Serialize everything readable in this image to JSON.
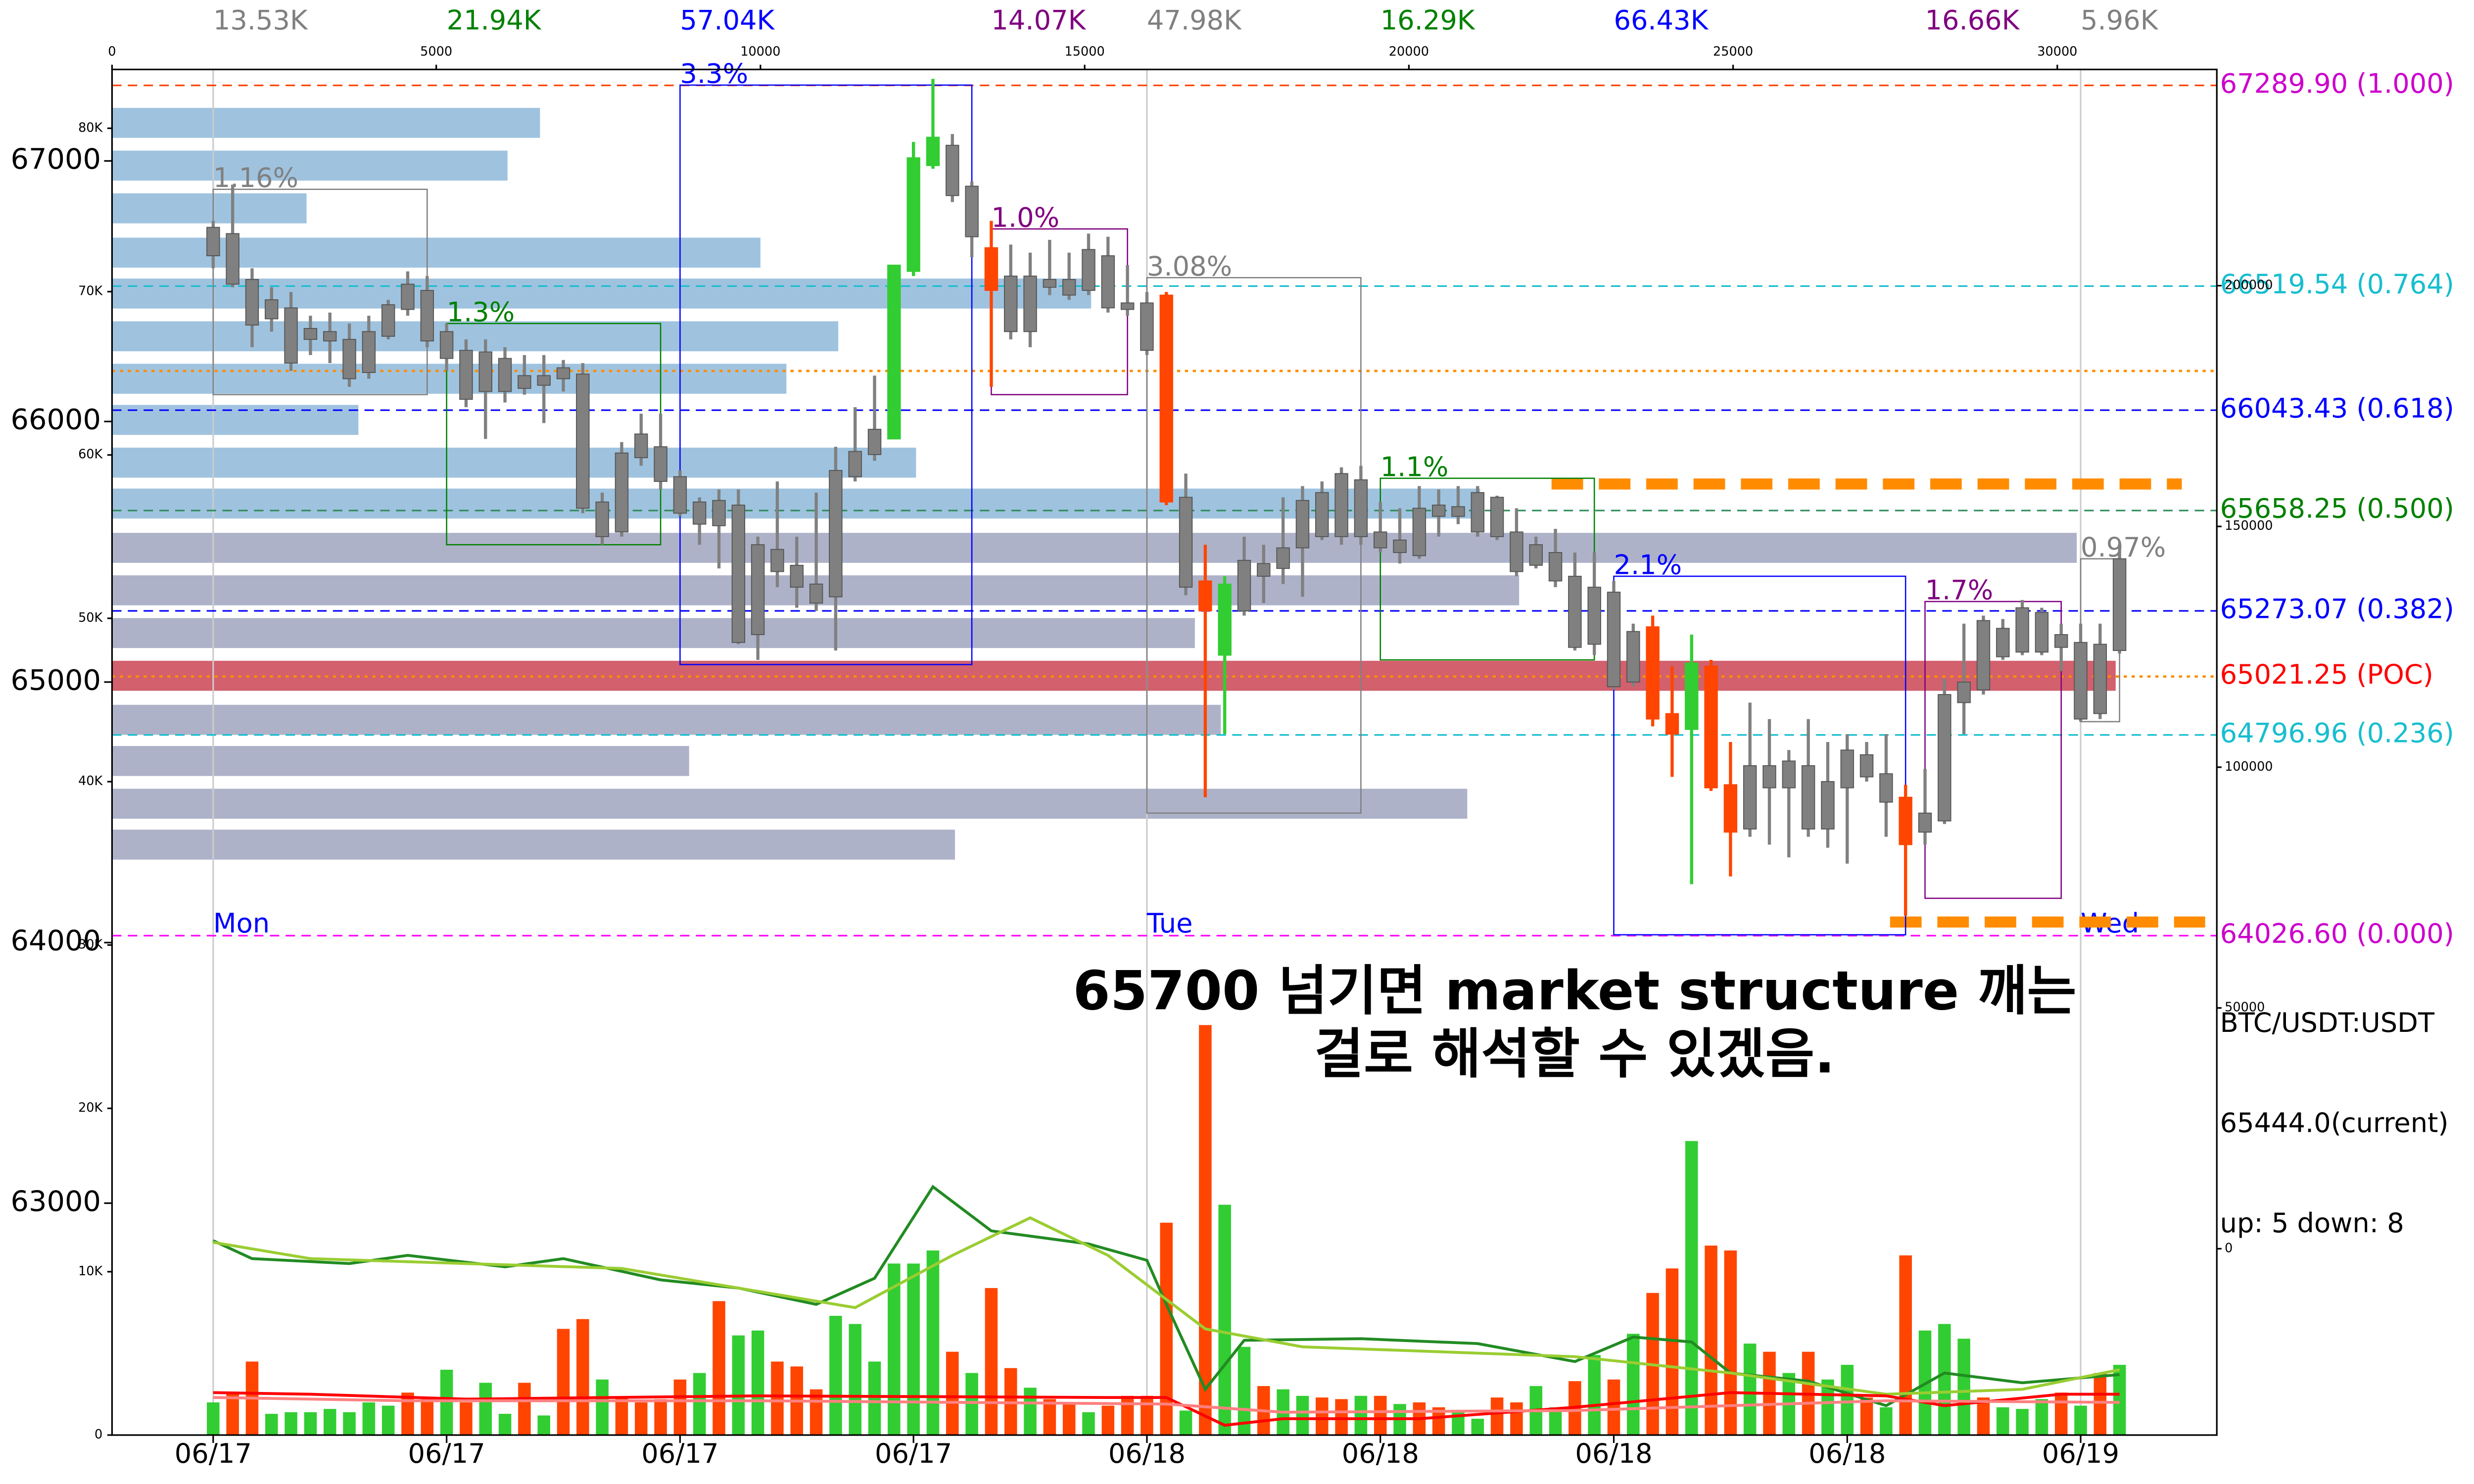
{
  "chart_data": {
    "type": "candlestick",
    "xlim": [
      -5.2,
      103
    ],
    "xticks": [
      {
        "value": 0,
        "label": "06/17"
      },
      {
        "value": 12,
        "label": "06/17"
      },
      {
        "value": 24,
        "label": "06/17"
      },
      {
        "value": 36,
        "label": "06/17"
      },
      {
        "value": 48,
        "label": "06/18"
      },
      {
        "value": 60,
        "label": "06/18"
      },
      {
        "value": 72,
        "label": "06/18"
      },
      {
        "value": 84,
        "label": "06/18"
      },
      {
        "value": 96,
        "label": "06/19"
      }
    ],
    "ylim": [
      62110,
      67351
    ],
    "yticks": [
      63000,
      64000,
      65000,
      66000,
      67000
    ],
    "open": [
      66636,
      66721,
      66545,
      66394,
      66436,
      66315,
      66345,
      66315,
      66188,
      66327,
      66430,
      66503,
      66345,
      66273,
      66115,
      66242,
      66127,
      66176,
      66164,
      66182,
      65691,
      65576,
      65861,
      65903,
      65788,
      65691,
      65600,
      65679,
      65182,
      65509,
      65448,
      65376,
      65327,
      65788,
      65873,
      65933,
      66576,
      66982,
      67060,
      66903,
      66667,
      66558,
      66345,
      66545,
      66545,
      66503,
      66636,
      66455,
      66455,
      66485,
      65709,
      65388,
      65103,
      65273,
      65406,
      65436,
      65515,
      65558,
      65558,
      65776,
      65576,
      65545,
      65485,
      65636,
      65673,
      65576,
      65709,
      65576,
      65448,
      65497,
      65406,
      65145,
      65345,
      65000,
      65212,
      64879,
      64818,
      65061,
      64606,
      64436,
      64679,
      64594,
      64679,
      64436,
      64594,
      64721,
      64648,
      64558,
      64424,
      64467,
      64921,
      64970,
      65097,
      65115,
      65267,
      65133,
      65152,
      64879,
      65121
    ],
    "high": [
      66770,
      66909,
      66588,
      66515,
      66497,
      66406,
      66418,
      66376,
      66406,
      66467,
      66576,
      66558,
      66376,
      66315,
      66315,
      66285,
      66255,
      66255,
      66236,
      66224,
      65727,
      65921,
      66030,
      66030,
      65812,
      65709,
      65739,
      65739,
      65558,
      65770,
      65558,
      65727,
      65903,
      66055,
      66176,
      66600,
      67073,
      67315,
      67103,
      66921,
      66770,
      66679,
      66648,
      66697,
      66648,
      66721,
      66709,
      66600,
      66497,
      66497,
      65800,
      65527,
      65406,
      65558,
      65527,
      65709,
      65752,
      65770,
      65824,
      65830,
      65691,
      65667,
      65752,
      65739,
      65752,
      65752,
      65715,
      65667,
      65558,
      65588,
      65497,
      65497,
      65388,
      65224,
      65255,
      65061,
      65182,
      65085,
      64770,
      64921,
      64858,
      64739,
      64858,
      64770,
      64800,
      64770,
      64800,
      64606,
      64667,
      65012,
      65224,
      65255,
      65242,
      65315,
      65285,
      65224,
      65224,
      65224,
      65527
    ],
    "low": [
      66588,
      66515,
      66285,
      66345,
      66194,
      66255,
      66224,
      66133,
      66164,
      66315,
      66406,
      66285,
      66194,
      66055,
      65933,
      66073,
      66103,
      65994,
      66115,
      65648,
      65527,
      65558,
      65830,
      65739,
      65636,
      65527,
      65436,
      65145,
      65085,
      65364,
      65285,
      65273,
      65121,
      65770,
      65849,
      65933,
      66558,
      66970,
      66842,
      66630,
      66133,
      66315,
      66285,
      66485,
      66467,
      66485,
      66418,
      66406,
      66255,
      65679,
      65333,
      64558,
      64800,
      65255,
      65303,
      65376,
      65327,
      65545,
      65527,
      65527,
      65497,
      65455,
      65473,
      65558,
      65606,
      65558,
      65545,
      65406,
      65436,
      65364,
      65121,
      65103,
      64970,
      64982,
      64830,
      64636,
      64224,
      64582,
      64254,
      64406,
      64376,
      64327,
      64406,
      64364,
      64303,
      64618,
      64406,
      64103,
      64376,
      64455,
      64800,
      64952,
      65085,
      65103,
      65103,
      65042,
      64848,
      64858,
      65109
    ],
    "close": [
      66745,
      66527,
      66370,
      66467,
      66224,
      66357,
      66309,
      66164,
      66345,
      66448,
      66527,
      66309,
      66242,
      66085,
      66267,
      66115,
      66176,
      66139,
      66206,
      65667,
      65558,
      65879,
      65952,
      65770,
      65648,
      65606,
      65697,
      65152,
      65527,
      65424,
      65364,
      65303,
      65812,
      65885,
      65970,
      66600,
      67012,
      67091,
      66867,
      66709,
      66503,
      66345,
      66558,
      66515,
      66485,
      66660,
      66436,
      66430,
      66273,
      65691,
      65364,
      65273,
      65376,
      65467,
      65455,
      65515,
      65697,
      65727,
      65800,
      65558,
      65515,
      65497,
      65667,
      65679,
      65636,
      65727,
      65558,
      65424,
      65527,
      65388,
      65133,
      65364,
      64982,
      65194,
      64858,
      64800,
      65073,
      64594,
      64424,
      64679,
      64594,
      64697,
      64436,
      64618,
      64739,
      64636,
      64539,
      64376,
      64497,
      64952,
      65000,
      65236,
      65206,
      65285,
      65115,
      65182,
      64858,
      65145,
      65473
    ],
    "colors": [
      "gray",
      "gray",
      "gray",
      "gray",
      "gray",
      "gray",
      "gray",
      "gray",
      "gray",
      "gray",
      "gray",
      "gray",
      "gray",
      "gray",
      "gray",
      "gray",
      "gray",
      "gray",
      "gray",
      "gray",
      "gray",
      "gray",
      "gray",
      "gray",
      "gray",
      "gray",
      "gray",
      "gray",
      "gray",
      "gray",
      "gray",
      "gray",
      "gray",
      "gray",
      "gray",
      "limegreen",
      "limegreen",
      "limegreen",
      "gray",
      "gray",
      "orangered",
      "gray",
      "gray",
      "gray",
      "gray",
      "gray",
      "gray",
      "gray",
      "gray",
      "orangered",
      "gray",
      "orangered",
      "limegreen",
      "gray",
      "gray",
      "gray",
      "gray",
      "gray",
      "gray",
      "gray",
      "gray",
      "gray",
      "gray",
      "gray",
      "gray",
      "gray",
      "gray",
      "gray",
      "gray",
      "gray",
      "gray",
      "gray",
      "gray",
      "gray",
      "orangered",
      "orangered",
      "limegreen",
      "orangered",
      "orangered",
      "gray",
      "gray",
      "gray",
      "gray",
      "gray",
      "gray",
      "gray",
      "gray",
      "orangered",
      "gray",
      "gray",
      "gray",
      "gray",
      "gray",
      "gray",
      "gray",
      "gray",
      "gray",
      "gray",
      "gray"
    ],
    "volume": {
      "ylim": [
        0,
        83600
      ],
      "yticks": [
        0,
        {
          "value": 10000,
          "label": "10K"
        },
        {
          "value": 20000,
          "label": "20K"
        },
        {
          "value": 30000,
          "label": "30K"
        },
        {
          "value": 40000,
          "label": "40K"
        },
        {
          "value": 50000,
          "label": "50K"
        },
        {
          "value": 60000,
          "label": "60K"
        },
        {
          "value": 70000,
          "label": "70K"
        },
        {
          "value": 80000,
          "label": "80K"
        }
      ],
      "values": [
        2000,
        2600,
        4500,
        1300,
        1400,
        1400,
        1600,
        1400,
        2000,
        1800,
        2600,
        2200,
        4000,
        2000,
        3200,
        1300,
        3200,
        1200,
        6500,
        7100,
        3400,
        2300,
        2000,
        2200,
        3400,
        3800,
        8200,
        6100,
        6400,
        4500,
        4200,
        2800,
        7300,
        6800,
        4500,
        10500,
        10500,
        11300,
        5100,
        3800,
        9000,
        4100,
        2900,
        2200,
        2000,
        1400,
        1800,
        2400,
        2400,
        13000,
        1500,
        25100,
        14100,
        5400,
        3000,
        2800,
        2400,
        2300,
        2200,
        2400,
        2400,
        1900,
        2000,
        1700,
        1400,
        1000,
        2300,
        2000,
        3000,
        1700,
        3300,
        4900,
        3400,
        6200,
        8700,
        10200,
        18000,
        11600,
        11300,
        5600,
        5100,
        3800,
        5100,
        3400,
        4300,
        2300,
        1700,
        11000,
        6400,
        6800,
        5900,
        2300,
        1700,
        1600,
        2200,
        2600,
        1800,
        3800,
        4300
      ],
      "colors": [
        "limegreen",
        "orangered",
        "orangered",
        "limegreen",
        "limegreen",
        "limegreen",
        "limegreen",
        "limegreen",
        "limegreen",
        "limegreen",
        "orangered",
        "orangered",
        "limegreen",
        "orangered",
        "limegreen",
        "limegreen",
        "orangered",
        "limegreen",
        "orangered",
        "orangered",
        "limegreen",
        "orangered",
        "orangered",
        "orangered",
        "orangered",
        "limegreen",
        "orangered",
        "limegreen",
        "limegreen",
        "orangered",
        "orangered",
        "orangered",
        "limegreen",
        "limegreen",
        "limegreen",
        "limegreen",
        "limegreen",
        "limegreen",
        "orangered",
        "limegreen",
        "orangered",
        "orangered",
        "limegreen",
        "orangered",
        "orangered",
        "limegreen",
        "orangered",
        "orangered",
        "orangered",
        "orangered",
        "limegreen",
        "orangered",
        "limegreen",
        "limegreen",
        "orangered",
        "limegreen",
        "limegreen",
        "orangered",
        "orangered",
        "limegreen",
        "orangered",
        "limegreen",
        "orangered",
        "orangered",
        "limegreen",
        "limegreen",
        "orangered",
        "orangered",
        "limegreen",
        "limegreen",
        "orangered",
        "limegreen",
        "orangered",
        "limegreen",
        "orangered",
        "orangered",
        "limegreen",
        "orangered",
        "orangered",
        "limegreen",
        "orangered",
        "limegreen",
        "orangered",
        "limegreen",
        "limegreen",
        "orangered",
        "limegreen",
        "orangered",
        "limegreen",
        "limegreen",
        "limegreen",
        "orangered",
        "limegreen",
        "limegreen",
        "limegreen",
        "orangered",
        "limegreen",
        "orangered",
        "limegreen"
      ],
      "lines": [
        {
          "color": "#228b22",
          "x": [
            0,
            2,
            7,
            10,
            15,
            18,
            23,
            27,
            31,
            34,
            37,
            40,
            45,
            48,
            49,
            51,
            53,
            59,
            65,
            70,
            73,
            76,
            78,
            82,
            86,
            89,
            93,
            98
          ],
          "values": [
            11900,
            10800,
            10500,
            11000,
            10300,
            10800,
            9500,
            9000,
            8000,
            9600,
            15200,
            12500,
            11700,
            10700,
            8000,
            2800,
            5800,
            5900,
            5600,
            4500,
            6000,
            5700,
            3800,
            3300,
            1800,
            3800,
            3200,
            3700
          ]
        },
        {
          "color": "#9acd32",
          "x": [
            0,
            5,
            13,
            21,
            31,
            33,
            38,
            42,
            46,
            51,
            56,
            70,
            78,
            86,
            93,
            98
          ],
          "values": [
            11800,
            10800,
            10500,
            10200,
            8200,
            7800,
            11000,
            13300,
            11000,
            6500,
            5400,
            4800,
            3800,
            2500,
            2800,
            4000
          ]
        },
        {
          "color": "#ff0000",
          "x": [
            0,
            5,
            13,
            28,
            46,
            49,
            52,
            55,
            62,
            70,
            78,
            86,
            89,
            95,
            98
          ],
          "values": [
            2600,
            2500,
            2200,
            2400,
            2300,
            2300,
            600,
            1000,
            1000,
            1700,
            2600,
            2400,
            1800,
            2500,
            2500
          ]
        },
        {
          "color": "#ff8080",
          "x": [
            0,
            10,
            28,
            49,
            55,
            70,
            86,
            98
          ],
          "values": [
            2300,
            2100,
            2100,
            1900,
            1400,
            1500,
            2100,
            2000
          ]
        }
      ]
    },
    "y2lim": [
      -38700,
      244900
    ],
    "y2ticks": [
      0,
      50000,
      100000,
      150000,
      200000
    ],
    "volume_profile": {
      "xlim": [
        0,
        32460
      ],
      "xticks": [
        0,
        5000,
        10000,
        15000,
        20000,
        25000,
        30000
      ],
      "levels": [
        67146,
        66982,
        66818,
        66648,
        66491,
        66327,
        66164,
        66006,
        65842,
        65685,
        65515,
        65352,
        65188,
        65024,
        64855,
        64697,
        64533,
        64376
      ],
      "values": [
        6600,
        6100,
        3000,
        10000,
        15100,
        11200,
        10400,
        3800,
        12400,
        21100,
        30300,
        21700,
        16700,
        30900,
        17100,
        8900,
        20900,
        13000
      ],
      "colors": [
        "#9fc3df",
        "#9fc3df",
        "#9fc3df",
        "#9fc3df",
        "#9fc3df",
        "#9fc3df",
        "#9fc3df",
        "#9fc3df",
        "#9fc3df",
        "#9fc3df",
        "#aeb2c9",
        "#aeb2c9",
        "#aeb2c9",
        "#d2606d",
        "#aeb2c9",
        "#aeb2c9",
        "#aeb2c9",
        "#aeb2c9"
      ]
    },
    "levels": [
      {
        "value": 67289.9,
        "label": "67289.90 (1.000)",
        "color": "#cc00cc",
        "line_color": "#ff4500",
        "style": "dashed"
      },
      {
        "value": 66519.54,
        "label": "66519.54 (0.764)",
        "color": "#17becf",
        "line_color": "#17becf",
        "style": "dashed"
      },
      {
        "value": 66194,
        "line_color": "#ff8c00",
        "style": "dotted"
      },
      {
        "value": 66043.43,
        "label": "66043.43 (0.618)",
        "color": "#0000ff",
        "line_color": "#0000ff",
        "style": "dashed"
      },
      {
        "value": 65658.25,
        "label": "65658.25 (0.500)",
        "color": "#008000",
        "line_color": "#2e8b57",
        "style": "dashed"
      },
      {
        "value": 65273.07,
        "label": "65273.07 (0.382)",
        "color": "#0000ff",
        "line_color": "#0000ff",
        "style": "dashed"
      },
      {
        "value": 65021.25,
        "label": "65021.25 (POC)",
        "color": "#ff0000",
        "line_color": "#ff8c00",
        "style": "dotted"
      },
      {
        "value": 64796.96,
        "label": "64796.96 (0.236)",
        "color": "#17becf",
        "line_color": "#17becf",
        "style": "dashed"
      },
      {
        "value": 64026.6,
        "label": "64026.60 (0.000)",
        "color": "#cc00cc",
        "line_color": "#ff00ff",
        "style": "dashed"
      }
    ],
    "zones": [
      {
        "value": 65760,
        "start": 68.8,
        "end": 101.2,
        "color": "#ff8c00"
      },
      {
        "value": 64079,
        "start": 86.2,
        "end": 102.4,
        "color": "#ff8c00"
      }
    ],
    "boxes": [
      {
        "start": 0,
        "end": 11,
        "high": 66891,
        "low": 66103,
        "color": "#808080",
        "label": "1.16%",
        "volume_label": "13.53K"
      },
      {
        "start": 12,
        "end": 23,
        "high": 66376,
        "low": 65527,
        "color": "#008000",
        "label": "1.3%",
        "volume_label": "21.94K"
      },
      {
        "start": 24,
        "end": 39,
        "high": 67291,
        "low": 65067,
        "color": "#0000ff",
        "label": "3.3%",
        "volume_label": "57.04K"
      },
      {
        "start": 40,
        "end": 47,
        "high": 66739,
        "low": 66103,
        "color": "#800080",
        "label": "1.0%",
        "volume_label": "14.07K"
      },
      {
        "start": 48,
        "end": 59,
        "high": 66552,
        "low": 64497,
        "color": "#808080",
        "label": "3.08%",
        "volume_label": "47.98K"
      },
      {
        "start": 60,
        "end": 71,
        "high": 65782,
        "low": 65085,
        "color": "#008000",
        "label": "1.1%",
        "volume_label": "16.29K"
      },
      {
        "start": 72,
        "end": 87,
        "high": 65406,
        "low": 64030,
        "color": "#0000ff",
        "label": "2.1%",
        "volume_label": "66.43K"
      },
      {
        "start": 88,
        "end": 95,
        "high": 65309,
        "low": 64170,
        "color": "#800080",
        "label": "1.7%",
        "volume_label": "16.66K"
      },
      {
        "start": 96,
        "end": 98,
        "high": 65473,
        "low": 64848,
        "color": "#808080",
        "label": "0.97%",
        "volume_label": "5.96K"
      }
    ],
    "sessions": [
      {
        "value": 0,
        "label": "Mon"
      },
      {
        "value": 48,
        "label": "Tue"
      },
      {
        "value": 96,
        "label": "Wed"
      }
    ],
    "annotation": [
      "65700 넘기면 market structure 깨는",
      "걸로 해석할 수 있겠음."
    ],
    "info": [
      "BTC/USDT:USDT",
      "65444.0(current)",
      "up: 5 down: 8"
    ]
  }
}
